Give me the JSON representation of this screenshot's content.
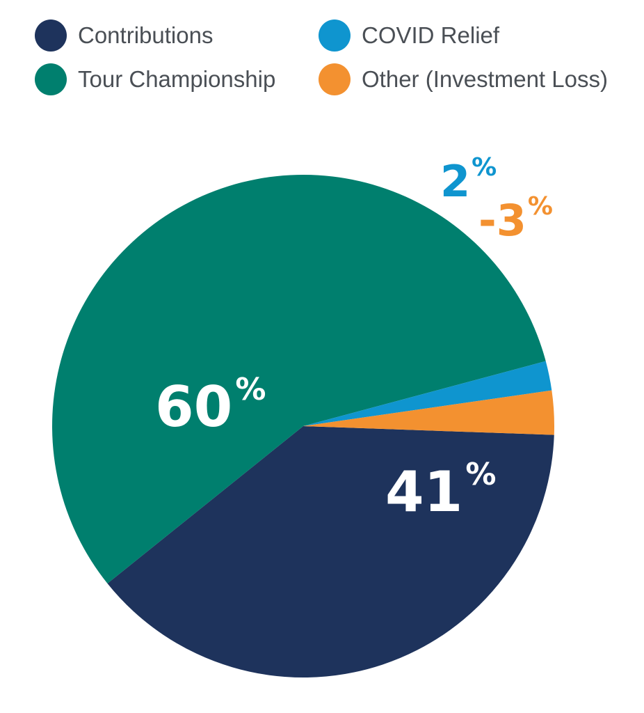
{
  "chart_data": {
    "type": "pie",
    "series": [
      {
        "name": "Contributions",
        "value": 41,
        "label": "41",
        "color": "#1e335c"
      },
      {
        "name": "Tour Championship",
        "value": 60,
        "label": "60",
        "color": "#007f6e"
      },
      {
        "name": "COVID Relief",
        "value": 2,
        "label": "2",
        "color": "#0f95cf"
      },
      {
        "name": "Other (Investment Loss)",
        "value": -3,
        "label": "-3",
        "color": "#f39130"
      }
    ],
    "percent_sign": "%",
    "legend_position": "top"
  }
}
